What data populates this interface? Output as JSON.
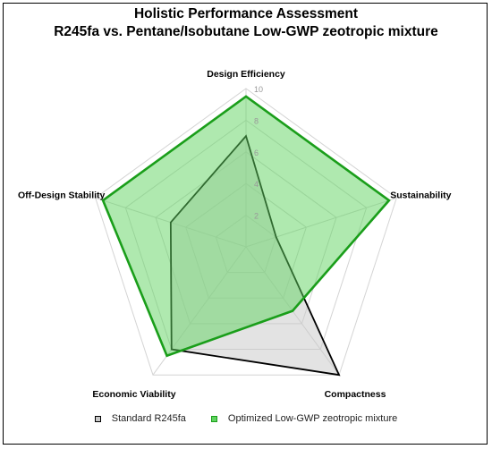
{
  "chart_data": {
    "type": "radar",
    "title": "Holistic Performance Assessment",
    "subtitle": "R245fa vs. Pentane/Isobutane Low-GWP zeotropic mixture",
    "axes": [
      "Design Efficiency",
      "Sustainability",
      "Compactness",
      "Economic Viability",
      "Off-Design Stability"
    ],
    "range": [
      0,
      10
    ],
    "ticks": [
      "2",
      "4",
      "6",
      "8",
      "10"
    ],
    "grid": true,
    "legend_position": "bottom",
    "series": [
      {
        "name": "Standard R245fa",
        "values": [
          7,
          2,
          10,
          8,
          5
        ],
        "stroke": "#000000",
        "fill": "#c8c8c8"
      },
      {
        "name": "Optimized Low-GWP zeotropic mixture",
        "values": [
          9.5,
          9.5,
          5,
          8.5,
          9.5
        ],
        "stroke": "#1a9e1a",
        "fill": "#5fd35f"
      }
    ]
  }
}
